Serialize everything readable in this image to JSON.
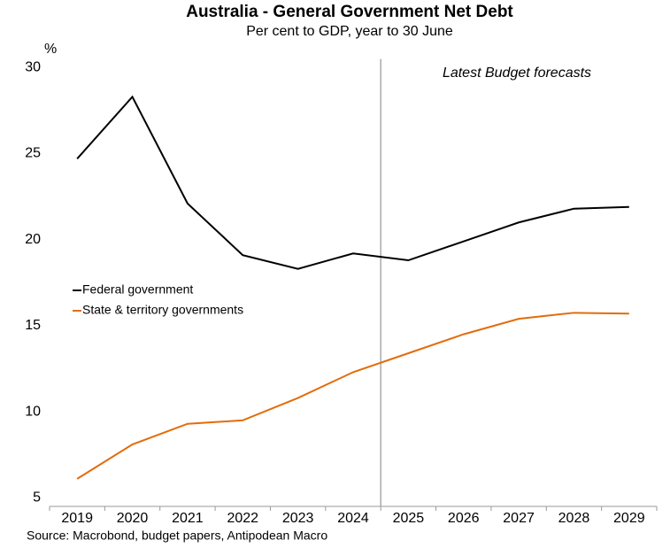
{
  "chart_data": {
    "type": "line",
    "title": "Australia - General Government Net Debt",
    "subtitle": "Per cent to GDP, year to 30 June",
    "y_label": "%",
    "annotation": "Latest Budget forecasts",
    "source": "Source: Macrobond, budget papers, Antipodean Macro",
    "categories": [
      "2019",
      "2020",
      "2021",
      "2022",
      "2023",
      "2024",
      "2025",
      "2026",
      "2027",
      "2028",
      "2029"
    ],
    "series": [
      {
        "name": "Federal government",
        "color": "#000000",
        "values": [
          24.7,
          28.3,
          22.1,
          19.1,
          18.3,
          19.2,
          18.8,
          19.9,
          21.0,
          21.8,
          21.9
        ]
      },
      {
        "name": "State & territory governments",
        "color": "#e36c0a",
        "values": [
          6.1,
          8.1,
          9.3,
          9.5,
          10.8,
          12.3,
          13.4,
          14.5,
          15.4,
          15.75,
          15.7
        ]
      }
    ],
    "ylim": [
      4.5,
      30.5
    ],
    "yticks": [
      5,
      10,
      15,
      20,
      25,
      30
    ],
    "grid": false,
    "legend": "left"
  }
}
